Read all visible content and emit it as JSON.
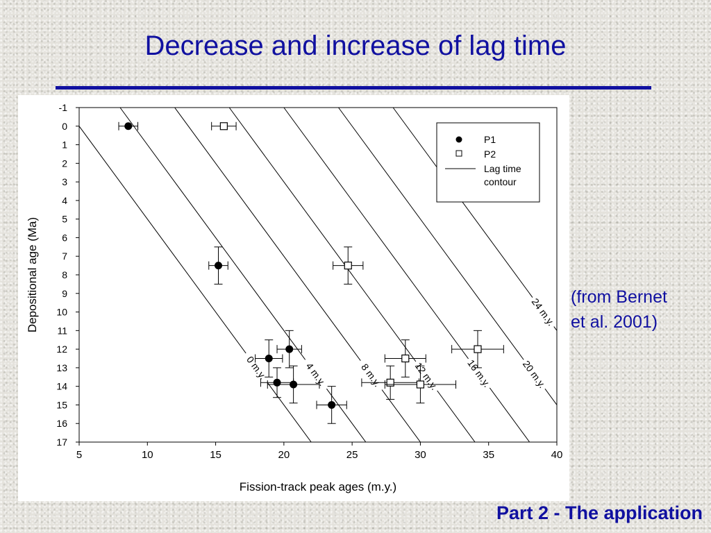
{
  "slide": {
    "title": "Decrease and increase of lag time",
    "source_line1": "(from Bernet",
    "source_line2": "et al. 2001)",
    "footer": "Part 2 - The application",
    "accent_color": "#1010a0"
  },
  "chart_data": {
    "type": "scatter",
    "title": "",
    "xlabel": "Fission-track peak ages (m.y.)",
    "ylabel": "Depositional age (Ma)",
    "xlim": [
      5,
      40
    ],
    "ylim": [
      -1,
      17
    ],
    "y_inverted": true,
    "xticks": [
      5,
      10,
      15,
      20,
      25,
      30,
      35,
      40
    ],
    "yticks": [
      -1,
      0,
      1,
      2,
      3,
      4,
      5,
      6,
      7,
      8,
      9,
      10,
      11,
      12,
      13,
      14,
      15,
      16,
      17
    ],
    "grid": false,
    "legend_position": "top-right",
    "legend": {
      "p1": "P1",
      "p2": "P2",
      "contour_line1": "Lag time",
      "contour_line2": "contour"
    },
    "contours": [
      {
        "label": "0 m.y.",
        "lag": 0
      },
      {
        "label": "4 m.y.",
        "lag": 4
      },
      {
        "label": "8 m.y.",
        "lag": 8
      },
      {
        "label": "12 m.y.",
        "lag": 12
      },
      {
        "label": "16 m.y.",
        "lag": 16
      },
      {
        "label": "20 m.y.",
        "lag": 20
      },
      {
        "label": "24 m.y.",
        "lag": 24
      }
    ],
    "series": [
      {
        "name": "P1",
        "marker": "filled-circle",
        "points": [
          {
            "x": 8.6,
            "y": 0,
            "xerr": 0.7,
            "yerr": 0
          },
          {
            "x": 15.2,
            "y": 7.5,
            "xerr": 0.7,
            "yerr": 1.0
          },
          {
            "x": 18.9,
            "y": 12.5,
            "xerr": 1.0,
            "yerr": 1.0
          },
          {
            "x": 19.5,
            "y": 13.8,
            "xerr": 1.2,
            "yerr": 0.8
          },
          {
            "x": 20.4,
            "y": 12.0,
            "xerr": 0.9,
            "yerr": 1.0
          },
          {
            "x": 20.7,
            "y": 13.9,
            "xerr": 1.9,
            "yerr": 1.0
          },
          {
            "x": 23.5,
            "y": 15.0,
            "xerr": 1.1,
            "yerr": 1.0
          }
        ]
      },
      {
        "name": "P2",
        "marker": "open-square",
        "points": [
          {
            "x": 15.6,
            "y": 0,
            "xerr": 0.9,
            "yerr": 0
          },
          {
            "x": 24.7,
            "y": 7.5,
            "xerr": 1.1,
            "yerr": 1.0
          },
          {
            "x": 27.8,
            "y": 13.8,
            "xerr": 2.1,
            "yerr": 0.9
          },
          {
            "x": 28.9,
            "y": 12.5,
            "xerr": 1.5,
            "yerr": 1.0
          },
          {
            "x": 30.0,
            "y": 13.9,
            "xerr": 2.6,
            "yerr": 1.0
          },
          {
            "x": 34.2,
            "y": 12.0,
            "xerr": 1.9,
            "yerr": 1.0
          }
        ]
      }
    ]
  }
}
